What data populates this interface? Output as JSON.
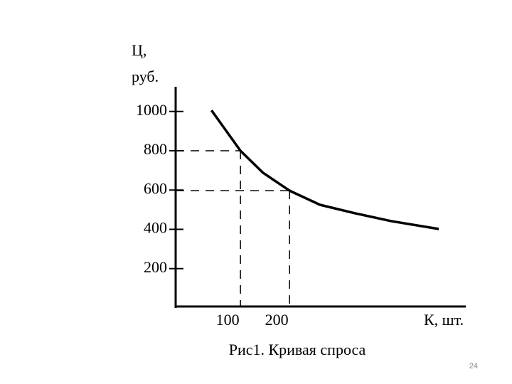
{
  "chart_data": {
    "type": "line",
    "title": "Рис1. Кривая спроса",
    "y_label": [
      "Ц,",
      "руб."
    ],
    "x_label": "К, шт.",
    "x": [
      41,
      100,
      146,
      200,
      262,
      335,
      407,
      504
    ],
    "series": [
      {
        "name": "Кривая спроса",
        "color": "#000000",
        "values": [
          1006,
          800,
          688,
          597,
          525,
          481,
          442,
          402
        ]
      }
    ],
    "xlim": [
      -32,
      559
    ],
    "ylim": [
      0,
      1126
    ],
    "xticks": [
      100,
      200
    ],
    "yticks": [
      200,
      400,
      600,
      800,
      1000
    ],
    "guides": [
      1,
      3
    ],
    "page_number": "24"
  }
}
